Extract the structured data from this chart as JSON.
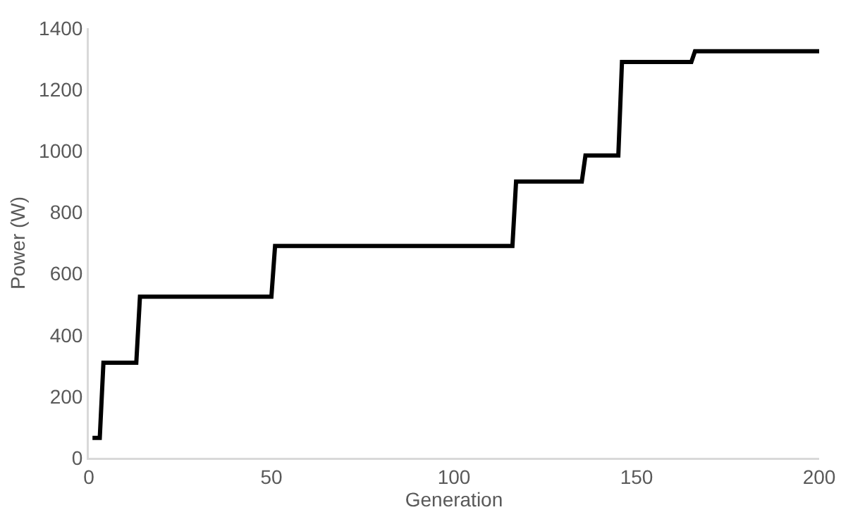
{
  "chart_data": {
    "type": "line",
    "xlabel": "Generation",
    "ylabel": "Power (W)",
    "x": [
      1,
      3,
      4,
      13,
      14,
      50,
      51,
      116,
      117,
      135,
      136,
      145,
      146,
      165,
      166,
      200
    ],
    "series": [
      {
        "color": "#000000",
        "values": [
          65,
          65,
          310,
          310,
          525,
          525,
          690,
          690,
          900,
          900,
          985,
          985,
          1290,
          1290,
          1325,
          1325
        ]
      }
    ],
    "xlim": [
      0,
      200
    ],
    "xticks": [
      0,
      50,
      100,
      150,
      200
    ],
    "ylim": [
      0,
      1400
    ],
    "yticks": [
      0,
      200,
      400,
      600,
      800,
      1000,
      1200,
      1400
    ],
    "marker": "none",
    "line_style": "solid"
  }
}
